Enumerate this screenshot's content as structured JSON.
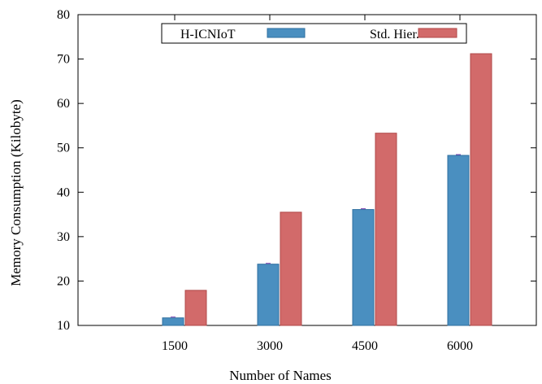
{
  "chart_data": {
    "type": "bar",
    "categories": [
      "1500",
      "3000",
      "4500",
      "6000"
    ],
    "series": [
      {
        "name": "H-ICNIoT",
        "values": [
          11.7,
          23.8,
          36.1,
          48.3
        ],
        "color": "#4a8fc0",
        "edge": "#2f6f9f"
      },
      {
        "name": "Std. Hier.",
        "values": [
          17.9,
          35.5,
          53.3,
          71.2
        ],
        "color": "#d26a6a",
        "edge": "#b04848"
      }
    ],
    "title": "",
    "xlabel": "Number of Names",
    "ylabel": "Memory Consumption (Kilobyte)",
    "ylim": [
      10,
      80
    ],
    "yticks": [
      10,
      20,
      30,
      40,
      50,
      60,
      70,
      80
    ],
    "grid": false,
    "legend_position": "top"
  }
}
